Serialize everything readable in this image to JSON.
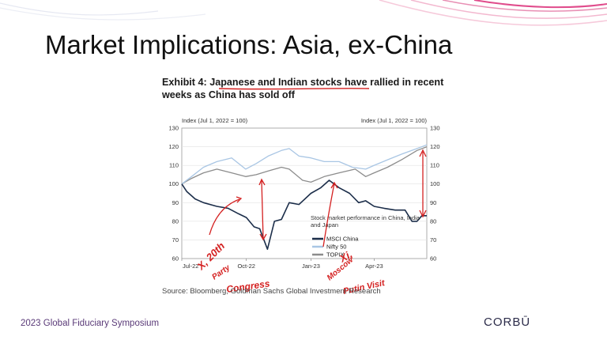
{
  "slide": {
    "title": "Market Implications: Asia, ex-China",
    "footer": "2023 Global Fiduciary Symposium",
    "logo": "CORBŪ",
    "accent_color": "#e04c8c"
  },
  "exhibit": {
    "label": "Exhibit 4:",
    "title": "Japanese and Indian stocks have rallied in recent weeks as China has sold off",
    "source": "Source: Bloomberg, Goldman Sachs Global Investment Research"
  },
  "annotations": {
    "left": "X, 20th Party Congress",
    "right": "Xi Moscow Putin Visit",
    "color": "#d42020"
  },
  "chart_data": {
    "type": "line",
    "left_axis_label": "Index (Jul 1, 2022 = 100)",
    "right_axis_label": "Index (Jul 1, 2022 = 100)",
    "ylim": [
      60,
      130
    ],
    "yticks": [
      60,
      70,
      80,
      90,
      100,
      110,
      120,
      130
    ],
    "xlim": [
      "2022-07-01",
      "2023-06-15"
    ],
    "xticks": [
      {
        "label": "Jul-22",
        "date": "2022-07-01"
      },
      {
        "label": "Oct-22",
        "date": "2022-10-01"
      },
      {
        "label": "Jan-23",
        "date": "2023-01-01"
      },
      {
        "label": "Apr-23",
        "date": "2023-04-01"
      }
    ],
    "legend_title": "Stock market performance in China, India and Japan",
    "legend_position": "bottom-right",
    "series": [
      {
        "name": "MSCI China",
        "color": "#1c2e4a",
        "x": [
          "2022-07-01",
          "2022-07-08",
          "2022-07-20",
          "2022-08-01",
          "2022-08-20",
          "2022-09-05",
          "2022-09-20",
          "2022-10-01",
          "2022-10-12",
          "2022-10-20",
          "2022-10-31",
          "2022-11-10",
          "2022-11-20",
          "2022-12-01",
          "2022-12-15",
          "2023-01-01",
          "2023-01-15",
          "2023-01-27",
          "2023-02-10",
          "2023-02-25",
          "2023-03-10",
          "2023-03-20",
          "2023-04-01",
          "2023-04-15",
          "2023-05-01",
          "2023-05-15",
          "2023-05-25",
          "2023-06-01",
          "2023-06-08",
          "2023-06-15"
        ],
        "values": [
          100,
          96,
          92,
          90,
          88,
          87,
          84,
          82,
          77,
          76,
          65,
          80,
          81,
          90,
          89,
          95,
          98,
          102,
          98,
          95,
          90,
          91,
          88,
          87,
          86,
          86,
          80,
          80,
          83,
          83
        ]
      },
      {
        "name": "Nifty 50",
        "color": "#a9c6e4",
        "x": [
          "2022-07-01",
          "2022-07-15",
          "2022-08-01",
          "2022-08-20",
          "2022-09-10",
          "2022-09-30",
          "2022-10-15",
          "2022-11-01",
          "2022-11-20",
          "2022-12-01",
          "2022-12-15",
          "2023-01-01",
          "2023-01-20",
          "2023-02-10",
          "2023-03-01",
          "2023-03-20",
          "2023-04-01",
          "2023-04-20",
          "2023-05-10",
          "2023-06-01",
          "2023-06-15"
        ],
        "values": [
          100,
          104,
          109,
          112,
          114,
          108,
          111,
          115,
          118,
          119,
          115,
          114,
          112,
          112,
          109,
          108,
          110,
          113,
          116,
          119,
          121
        ]
      },
      {
        "name": "TOPIX",
        "color": "#8c8c8c",
        "x": [
          "2022-07-01",
          "2022-07-15",
          "2022-08-01",
          "2022-08-20",
          "2022-09-10",
          "2022-09-30",
          "2022-10-15",
          "2022-11-01",
          "2022-11-20",
          "2022-12-01",
          "2022-12-20",
          "2023-01-01",
          "2023-01-20",
          "2023-02-10",
          "2023-03-05",
          "2023-03-20",
          "2023-04-01",
          "2023-04-20",
          "2023-05-10",
          "2023-06-01",
          "2023-06-15"
        ],
        "values": [
          100,
          103,
          106,
          108,
          106,
          104,
          105,
          107,
          109,
          108,
          102,
          101,
          104,
          106,
          108,
          104,
          106,
          109,
          113,
          118,
          120
        ]
      }
    ]
  }
}
